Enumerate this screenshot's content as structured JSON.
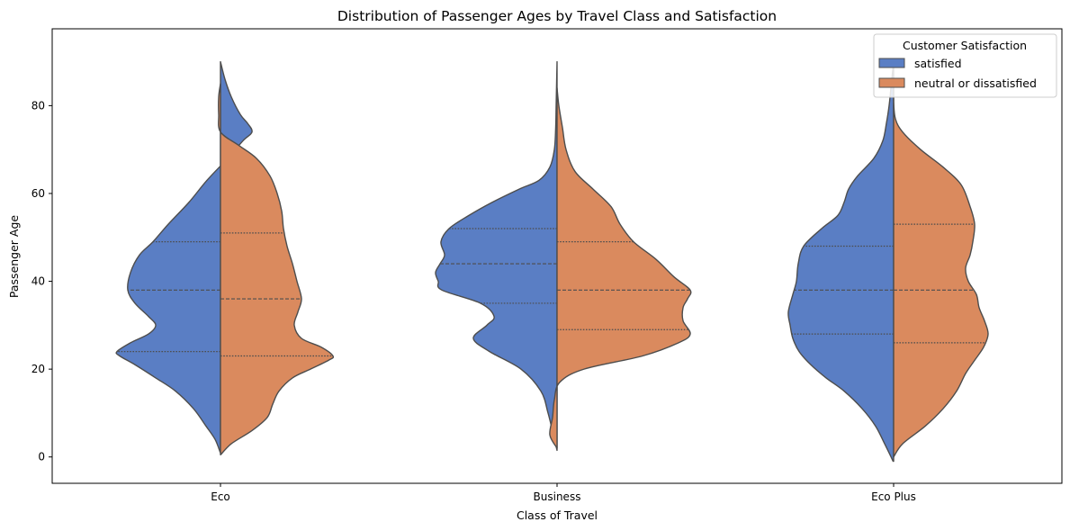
{
  "chart_data": {
    "type": "violin",
    "title": "Distribution of Passenger Ages by Travel Class and Satisfaction",
    "xlabel": "Class of Travel",
    "ylabel": "Passenger Age",
    "ylim": [
      -6,
      97.5
    ],
    "yticks": [
      0,
      20,
      40,
      60,
      80
    ],
    "categories": [
      "Eco",
      "Business",
      "Eco Plus"
    ],
    "legend": {
      "title": "Customer Satisfaction",
      "placement": "top-right",
      "entries": [
        "satisfied",
        "neutral or dissatisfied"
      ]
    },
    "colors": {
      "satisfied": "#5a7ec4",
      "neutral or dissatisfied": "#da8a5e",
      "edge": "#4d4d4d"
    },
    "series": [
      {
        "name": "satisfied",
        "violins": [
          {
            "range": [
              1,
              90
            ],
            "quartiles": [
              24,
              38,
              49
            ],
            "profile": [
              [
                1,
                0.2
              ],
              [
                4,
                6
              ],
              [
                7,
                16
              ],
              [
                11,
                30
              ],
              [
                15,
                50
              ],
              [
                18,
                72
              ],
              [
                21,
                95
              ],
              [
                23,
                112
              ],
              [
                24,
                115
              ],
              [
                26,
                100
              ],
              [
                28,
                80
              ],
              [
                30,
                72
              ],
              [
                32,
                80
              ],
              [
                35,
                95
              ],
              [
                38,
                103
              ],
              [
                42,
                100
              ],
              [
                46,
                90
              ],
              [
                49,
                75
              ],
              [
                53,
                58
              ],
              [
                58,
                35
              ],
              [
                63,
                15
              ],
              [
                68,
                -8
              ],
              [
                72,
                -25
              ],
              [
                74,
                -35
              ],
              [
                76,
                -30
              ],
              [
                78,
                -22
              ],
              [
                82,
                -12
              ],
              [
                86,
                -5
              ],
              [
                90,
                0
              ]
            ]
          },
          {
            "range": [
              1.5,
              90
            ],
            "quartiles": [
              35,
              44,
              52
            ],
            "profile": [
              [
                1.5,
                0
              ],
              [
                5,
                4
              ],
              [
                10,
                10
              ],
              [
                15,
                18
              ],
              [
                20,
                40
              ],
              [
                24,
                75
              ],
              [
                27,
                93
              ],
              [
                30,
                78
              ],
              [
                32,
                70
              ],
              [
                35,
                85
              ],
              [
                38,
                128
              ],
              [
                40,
                132
              ],
              [
                42,
                135
              ],
              [
                44,
                130
              ],
              [
                46,
                125
              ],
              [
                49,
                129
              ],
              [
                52,
                120
              ],
              [
                55,
                98
              ],
              [
                58,
                72
              ],
              [
                61,
                42
              ],
              [
                63,
                20
              ],
              [
                66,
                8
              ],
              [
                70,
                3
              ],
              [
                75,
                1.5
              ],
              [
                80,
                1
              ],
              [
                85,
                0.5
              ],
              [
                90,
                0
              ]
            ]
          },
          {
            "range": [
              -1,
              90
            ],
            "quartiles": [
              28,
              38,
              48
            ],
            "profile": [
              [
                -1,
                0.5
              ],
              [
                3,
                10
              ],
              [
                7,
                20
              ],
              [
                11,
                35
              ],
              [
                15,
                55
              ],
              [
                18,
                75
              ],
              [
                21,
                92
              ],
              [
                24,
                105
              ],
              [
                27,
                112
              ],
              [
                30,
                115
              ],
              [
                33,
                117
              ],
              [
                37,
                112
              ],
              [
                40,
                108
              ],
              [
                44,
                106
              ],
              [
                48,
                100
              ],
              [
                52,
                80
              ],
              [
                55,
                62
              ],
              [
                58,
                55
              ],
              [
                61,
                50
              ],
              [
                64,
                40
              ],
              [
                68,
                22
              ],
              [
                72,
                12
              ],
              [
                76,
                8
              ],
              [
                80,
                5
              ],
              [
                84,
                3
              ],
              [
                88,
                1
              ],
              [
                90,
                0
              ]
            ]
          }
        ]
      },
      {
        "name": "neutral or dissatisfied",
        "violins": [
          {
            "range": [
              0.5,
              85
            ],
            "quartiles": [
              23,
              36,
              51
            ],
            "profile": [
              [
                0.5,
                0.2
              ],
              [
                3,
                12
              ],
              [
                6,
                35
              ],
              [
                9,
                52
              ],
              [
                12,
                58
              ],
              [
                15,
                65
              ],
              [
                18,
                80
              ],
              [
                20,
                100
              ],
              [
                22,
                120
              ],
              [
                23,
                125
              ],
              [
                25,
                112
              ],
              [
                27,
                90
              ],
              [
                30,
                82
              ],
              [
                33,
                86
              ],
              [
                36,
                90
              ],
              [
                40,
                85
              ],
              [
                44,
                80
              ],
              [
                48,
                74
              ],
              [
                52,
                70
              ],
              [
                56,
                68
              ],
              [
                60,
                63
              ],
              [
                64,
                55
              ],
              [
                68,
                40
              ],
              [
                71,
                20
              ],
              [
                74,
                0
              ],
              [
                78,
                -2
              ],
              [
                82,
                -2
              ],
              [
                85,
                0
              ]
            ]
          },
          {
            "range": [
              2,
              84
            ],
            "quartiles": [
              29,
              38,
              49
            ],
            "profile": [
              [
                2,
                0
              ],
              [
                5,
                -8
              ],
              [
                9,
                -5
              ],
              [
                13,
                -3
              ],
              [
                17,
                3
              ],
              [
                20,
                30
              ],
              [
                23,
                95
              ],
              [
                26,
                135
              ],
              [
                28,
                148
              ],
              [
                31,
                140
              ],
              [
                34,
                140
              ],
              [
                36,
                145
              ],
              [
                38,
                148
              ],
              [
                41,
                130
              ],
              [
                45,
                110
              ],
              [
                49,
                85
              ],
              [
                53,
                70
              ],
              [
                57,
                60
              ],
              [
                61,
                40
              ],
              [
                65,
                20
              ],
              [
                70,
                10
              ],
              [
                75,
                6
              ],
              [
                80,
                2
              ],
              [
                84,
                0
              ]
            ]
          },
          {
            "range": [
              0,
              85
            ],
            "quartiles": [
              26,
              38,
              53
            ],
            "profile": [
              [
                0,
                0
              ],
              [
                3,
                10
              ],
              [
                7,
                35
              ],
              [
                11,
                55
              ],
              [
                15,
                70
              ],
              [
                19,
                80
              ],
              [
                22,
                90
              ],
              [
                25,
                100
              ],
              [
                28,
                105
              ],
              [
                31,
                101
              ],
              [
                34,
                95
              ],
              [
                37,
                92
              ],
              [
                40,
                83
              ],
              [
                43,
                80
              ],
              [
                46,
                85
              ],
              [
                49,
                88
              ],
              [
                53,
                90
              ],
              [
                57,
                85
              ],
              [
                62,
                75
              ],
              [
                66,
                55
              ],
              [
                70,
                30
              ],
              [
                74,
                10
              ],
              [
                77,
                2
              ],
              [
                81,
                0
              ],
              [
                85,
                0
              ]
            ]
          }
        ]
      }
    ]
  }
}
